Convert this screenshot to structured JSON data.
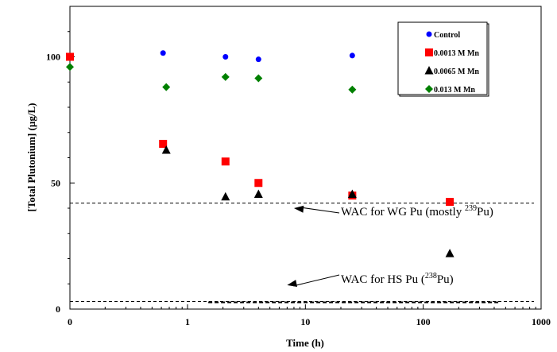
{
  "chart_data": {
    "type": "scatter",
    "xlabel": "Time (h)",
    "ylabel": "[Total Plutonium]  (µg/L)",
    "x_scale": "log",
    "xlim": [
      0,
      1000
    ],
    "ylim": [
      0,
      120
    ],
    "x_ticks": [
      "0",
      "1",
      "10",
      "100",
      "1000"
    ],
    "y_ticks": [
      "0",
      "50",
      "100"
    ],
    "grid": false,
    "legend_position": "top-right",
    "series": [
      {
        "name": "Control",
        "marker": "circle",
        "color": "#0000ff",
        "points": [
          [
            0,
            100
          ],
          [
            0.62,
            101.5
          ],
          [
            2.1,
            100
          ],
          [
            4.0,
            99
          ],
          [
            25,
            100.5
          ]
        ]
      },
      {
        "name": "0.0013 M Mn",
        "marker": "square",
        "color": "#ff0000",
        "points": [
          [
            0,
            100
          ],
          [
            0.62,
            65.5
          ],
          [
            2.1,
            58.5
          ],
          [
            4.0,
            50
          ],
          [
            25,
            45
          ],
          [
            168,
            42.5
          ]
        ]
      },
      {
        "name": "0.0065 M Mn",
        "marker": "triangle",
        "color": "#000000",
        "points": [
          [
            0.66,
            63
          ],
          [
            2.1,
            44.5
          ],
          [
            4.0,
            45.5
          ],
          [
            25,
            45.5
          ],
          [
            168,
            22
          ]
        ]
      },
      {
        "name": "0.013 M Mn",
        "marker": "diamond",
        "color": "#008000",
        "points": [
          [
            0,
            96
          ],
          [
            0.66,
            88
          ],
          [
            2.1,
            92
          ],
          [
            4.0,
            91.5
          ],
          [
            25,
            87
          ]
        ]
      }
    ],
    "reference_lines": [
      {
        "y": 42,
        "style": "dashed"
      },
      {
        "y": 3,
        "style": "dashed"
      }
    ],
    "annotations": [
      {
        "text": "WAC for WG Pu (mostly ",
        "sup": "239",
        "after": "Pu)",
        "arrow_to": [
          8,
          40
        ]
      },
      {
        "text": "WAC for HS Pu (",
        "sup": "238",
        "after": "Pu)",
        "arrow_to": [
          7,
          9.5
        ]
      }
    ]
  }
}
